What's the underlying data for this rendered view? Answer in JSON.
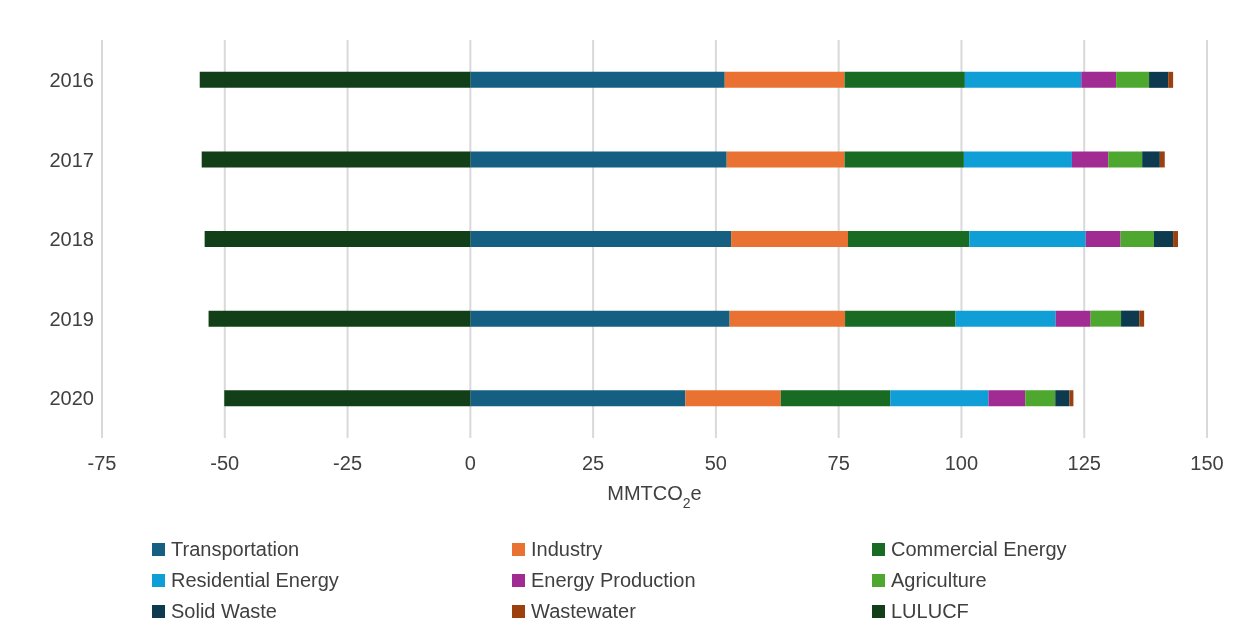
{
  "chart_data": {
    "type": "bar",
    "orientation": "horizontal",
    "stacked": true,
    "xlabel": "MMTCO$_{2}$e",
    "categories": [
      "2016",
      "2017",
      "2018",
      "2019",
      "2020"
    ],
    "series": [
      {
        "name": "Transportation",
        "color": "#156082",
        "values": [
          51.8,
          52.2,
          53.1,
          52.8,
          43.8
        ]
      },
      {
        "name": "Industry",
        "color": "#e97132",
        "values": [
          24.4,
          24.0,
          23.8,
          23.5,
          19.4
        ]
      },
      {
        "name": "Commercial Energy",
        "color": "#196b24",
        "values": [
          24.5,
          24.3,
          24.7,
          22.5,
          22.3
        ]
      },
      {
        "name": "Residential Energy",
        "color": "#0f9ed5",
        "values": [
          23.7,
          22.0,
          23.7,
          20.4,
          20.0
        ]
      },
      {
        "name": "Energy Production",
        "color": "#a02b93",
        "values": [
          7.1,
          7.4,
          7.1,
          7.1,
          7.5
        ]
      },
      {
        "name": "Agriculture",
        "color": "#4ea72e",
        "values": [
          6.7,
          6.9,
          6.8,
          6.2,
          6.1
        ]
      },
      {
        "name": "Solid Waste",
        "color": "#0e3a50",
        "values": [
          3.9,
          3.6,
          3.9,
          3.7,
          2.9
        ]
      },
      {
        "name": "Wastewater",
        "color": "#9c4010",
        "values": [
          1.0,
          1.0,
          1.0,
          1.0,
          0.8
        ]
      },
      {
        "name": "LULUCF",
        "color": "#123f18",
        "values": [
          -55.1,
          -54.7,
          -54.1,
          -53.3,
          -50.1
        ]
      }
    ],
    "xlim": [
      -75,
      150
    ],
    "xticks": [
      -75,
      -50,
      -25,
      0,
      25,
      50,
      75,
      100,
      125,
      150
    ],
    "grid": "x",
    "legend": "bottom"
  }
}
